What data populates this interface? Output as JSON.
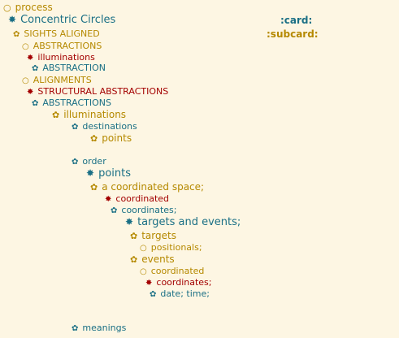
{
  "colors": {
    "background": "#fdf6e3",
    "gold": "#b58900",
    "teal": "#1a6f85",
    "red": "#a30000"
  },
  "lines": [
    {
      "text": "process",
      "icon": "○",
      "icon_name": "circle-outline-icon",
      "color": "#b58900"
    },
    {
      "text": "Concentric Circles",
      "icon": "✸",
      "icon_name": "asterisk-icon",
      "color": "#1a6f85"
    },
    {
      "text": "SIGHTS ALIGNED",
      "icon": "✿",
      "icon_name": "flower-icon",
      "color": "#b58900"
    },
    {
      "text": "ABSTRACTIONS",
      "icon": "○",
      "icon_name": "circle-outline-icon",
      "color": "#b58900"
    },
    {
      "text": "illuminations",
      "icon": "✸",
      "icon_name": "asterisk-icon",
      "color": "#a30000"
    },
    {
      "text": "ABSTRACTION",
      "icon": "✿",
      "icon_name": "flower-icon",
      "color": "#1a6f85"
    },
    {
      "text": "ALIGNMENTS",
      "icon": "○",
      "icon_name": "circle-outline-icon",
      "color": "#b58900"
    },
    {
      "text": "STRUCTURAL ABSTRACTIONS",
      "icon": "✸",
      "icon_name": "asterisk-icon",
      "color": "#a30000"
    },
    {
      "text": "ABSTRACTIONS",
      "icon": "✿",
      "icon_name": "flower-icon",
      "color": "#1a6f85"
    },
    {
      "text": "illuminations",
      "icon": "✿",
      "icon_name": "flower-icon",
      "color": "#b58900"
    },
    {
      "text": "destinations",
      "icon": "✿",
      "icon_name": "flower-icon",
      "color": "#1a6f85"
    },
    {
      "text": "points",
      "icon": "✿",
      "icon_name": "flower-icon",
      "color": "#b58900"
    },
    {
      "text": "order",
      "icon": "✿",
      "icon_name": "flower-icon",
      "color": "#1a6f85"
    },
    {
      "text": "points",
      "icon": "✸",
      "icon_name": "asterisk-icon",
      "color": "#1a6f85"
    },
    {
      "text": "a coordinated space;",
      "icon": "✿",
      "icon_name": "flower-icon",
      "color": "#b58900"
    },
    {
      "text": "coordinated",
      "icon": "✸",
      "icon_name": "asterisk-icon",
      "color": "#a30000"
    },
    {
      "text": "coordinates;",
      "icon": "✿",
      "icon_name": "flower-icon",
      "color": "#1a6f85"
    },
    {
      "text": "targets and events;",
      "icon": "✸",
      "icon_name": "asterisk-icon",
      "color": "#1a6f85"
    },
    {
      "text": "targets",
      "icon": "✿",
      "icon_name": "flower-icon",
      "color": "#b58900"
    },
    {
      "text": "positionals;",
      "icon": "○",
      "icon_name": "circle-outline-icon",
      "color": "#b58900"
    },
    {
      "text": "events",
      "icon": "✿",
      "icon_name": "flower-icon",
      "color": "#b58900"
    },
    {
      "text": "coordinated",
      "icon": "○",
      "icon_name": "circle-outline-icon",
      "color": "#b58900"
    },
    {
      "text": "coordinates;",
      "icon": "✸",
      "icon_name": "asterisk-icon",
      "color": "#a30000"
    },
    {
      "text": "date; time;",
      "icon": "✿",
      "icon_name": "flower-icon",
      "color": "#1a6f85"
    },
    {
      "text": "meanings",
      "icon": "✿",
      "icon_name": "flower-icon",
      "color": "#1a6f85"
    }
  ],
  "tags": [
    {
      "text": ":card:",
      "color": "#1a6f85"
    },
    {
      "text": ":subcard:",
      "color": "#b58900"
    }
  ]
}
